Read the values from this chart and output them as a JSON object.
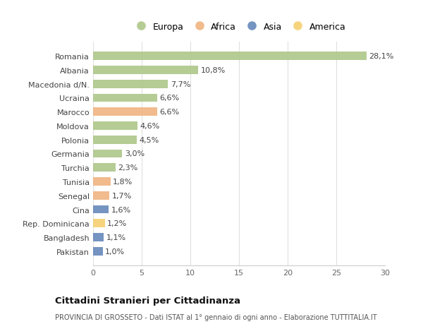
{
  "categories": [
    "Romania",
    "Albania",
    "Macedonia d/N.",
    "Ucraina",
    "Marocco",
    "Moldova",
    "Polonia",
    "Germania",
    "Turchia",
    "Tunisia",
    "Senegal",
    "Cina",
    "Rep. Dominicana",
    "Bangladesh",
    "Pakistan"
  ],
  "values": [
    28.1,
    10.8,
    7.7,
    6.6,
    6.6,
    4.6,
    4.5,
    3.0,
    2.3,
    1.8,
    1.7,
    1.6,
    1.2,
    1.1,
    1.0
  ],
  "labels": [
    "28,1%",
    "10,8%",
    "7,7%",
    "6,6%",
    "6,6%",
    "4,6%",
    "4,5%",
    "3,0%",
    "2,3%",
    "1,8%",
    "1,7%",
    "1,6%",
    "1,2%",
    "1,1%",
    "1,0%"
  ],
  "continents": [
    "Europa",
    "Europa",
    "Europa",
    "Europa",
    "Africa",
    "Europa",
    "Europa",
    "Europa",
    "Europa",
    "Africa",
    "Africa",
    "Asia",
    "America",
    "Asia",
    "Asia"
  ],
  "colors": {
    "Europa": "#adc78a",
    "Africa": "#f0b482",
    "Asia": "#6688bb",
    "America": "#f5d070"
  },
  "title": "Cittadini Stranieri per Cittadinanza",
  "subtitle": "PROVINCIA DI GROSSETO - Dati ISTAT al 1° gennaio di ogni anno - Elaborazione TUTTITALIA.IT",
  "xlim": [
    0,
    30
  ],
  "xticks": [
    0,
    5,
    10,
    15,
    20,
    25,
    30
  ],
  "background_color": "#ffffff",
  "grid_color": "#e0e0e0",
  "bar_height": 0.6
}
